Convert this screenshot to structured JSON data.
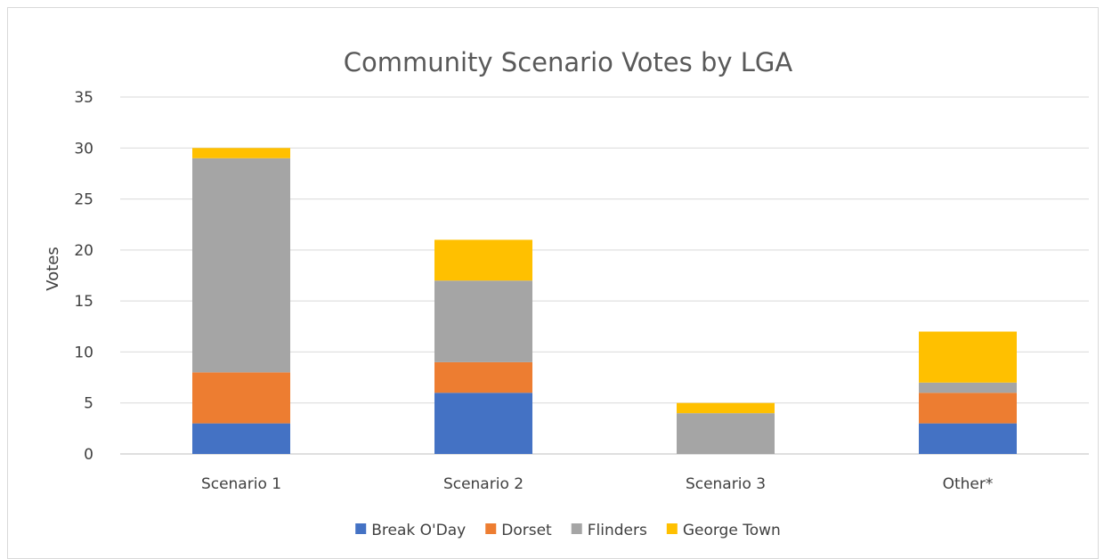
{
  "chart_data": {
    "type": "bar",
    "stacked": true,
    "title": "Community Scenario Votes by LGA",
    "xlabel": "",
    "ylabel": "Votes",
    "ylim": [
      0,
      35
    ],
    "yticks": [
      0,
      5,
      10,
      15,
      20,
      25,
      30,
      35
    ],
    "categories": [
      "Scenario 1",
      "Scenario 2",
      "Scenario 3",
      "Other*"
    ],
    "series": [
      {
        "name": "Break O'Day",
        "color": "#4472c4",
        "values": [
          3,
          6,
          0,
          3
        ]
      },
      {
        "name": "Dorset",
        "color": "#ed7d31",
        "values": [
          5,
          3,
          0,
          3
        ]
      },
      {
        "name": "Flinders",
        "color": "#a5a5a5",
        "values": [
          21,
          8,
          4,
          1
        ]
      },
      {
        "name": "George Town",
        "color": "#ffc000",
        "values": [
          1,
          4,
          1,
          5
        ]
      }
    ],
    "grid": true,
    "legend": "bottom"
  }
}
